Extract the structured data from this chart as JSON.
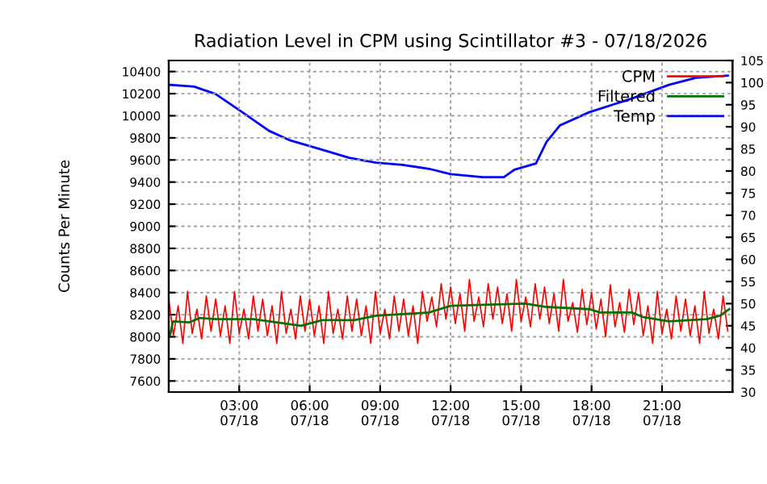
{
  "chart_data": {
    "type": "line",
    "title": "Radiation Level in CPM using Scintillator #3 - 07/18/2026",
    "ylabel": "Counts Per Minute",
    "xlim": [
      "2026-07-18T00:00",
      "2026-07-19T00:00"
    ],
    "xticks": [
      {
        "value": "2026-07-18T03:00",
        "label": "03:00\n07/18"
      },
      {
        "value": "2026-07-18T06:00",
        "label": "06:00\n07/18"
      },
      {
        "value": "2026-07-18T09:00",
        "label": "09:00\n07/18"
      },
      {
        "value": "2026-07-18T12:00",
        "label": "12:00\n07/18"
      },
      {
        "value": "2026-07-18T15:00",
        "label": "15:00\n07/18"
      },
      {
        "value": "2026-07-18T18:00",
        "label": "18:00\n07/18"
      },
      {
        "value": "2026-07-18T21:00",
        "label": "21:00\n07/18"
      }
    ],
    "ylim": [
      7500,
      10500
    ],
    "yticks": [
      7600,
      7800,
      8000,
      8200,
      8400,
      8600,
      8800,
      9000,
      9200,
      9400,
      9600,
      9800,
      10000,
      10200,
      10400
    ],
    "y2lim": [
      30,
      105
    ],
    "y2ticks": [
      30,
      35,
      40,
      45,
      50,
      55,
      60,
      65,
      70,
      75,
      80,
      85,
      90,
      95,
      100,
      105
    ],
    "grid": true,
    "legend": "top right",
    "line_style": "solid",
    "marker": "none",
    "series": [
      {
        "name": "CPM",
        "color": "#ff0000",
        "x": [
          "2026-07-18T00:00",
          "2026-07-18T00:12",
          "2026-07-18T00:24",
          "2026-07-18T00:36",
          "2026-07-18T00:48",
          "2026-07-18T01:00",
          "2026-07-18T01:12",
          "2026-07-18T01:24",
          "2026-07-18T01:36",
          "2026-07-18T01:48",
          "2026-07-18T02:00",
          "2026-07-18T02:12",
          "2026-07-18T02:24",
          "2026-07-18T02:36",
          "2026-07-18T02:48",
          "2026-07-18T03:00",
          "2026-07-18T03:12",
          "2026-07-18T03:24",
          "2026-07-18T03:36",
          "2026-07-18T03:48",
          "2026-07-18T04:00",
          "2026-07-18T04:12",
          "2026-07-18T04:24",
          "2026-07-18T04:36",
          "2026-07-18T04:48",
          "2026-07-18T05:00",
          "2026-07-18T05:12",
          "2026-07-18T05:24",
          "2026-07-18T05:36",
          "2026-07-18T05:48",
          "2026-07-18T06:00",
          "2026-07-18T06:12",
          "2026-07-18T06:24",
          "2026-07-18T06:36",
          "2026-07-18T06:48",
          "2026-07-18T07:00",
          "2026-07-18T07:12",
          "2026-07-18T07:24",
          "2026-07-18T07:36",
          "2026-07-18T07:48",
          "2026-07-18T08:00",
          "2026-07-18T08:12",
          "2026-07-18T08:24",
          "2026-07-18T08:36",
          "2026-07-18T08:48",
          "2026-07-18T09:00",
          "2026-07-18T09:12",
          "2026-07-18T09:24",
          "2026-07-18T09:36",
          "2026-07-18T09:48",
          "2026-07-18T10:00",
          "2026-07-18T10:12",
          "2026-07-18T10:24",
          "2026-07-18T10:36",
          "2026-07-18T10:48",
          "2026-07-18T11:00",
          "2026-07-18T11:12",
          "2026-07-18T11:24",
          "2026-07-18T11:36",
          "2026-07-18T11:48",
          "2026-07-18T12:00",
          "2026-07-18T12:12",
          "2026-07-18T12:24",
          "2026-07-18T12:36",
          "2026-07-18T12:48",
          "2026-07-18T13:00",
          "2026-07-18T13:12",
          "2026-07-18T13:24",
          "2026-07-18T13:36",
          "2026-07-18T13:48",
          "2026-07-18T14:00",
          "2026-07-18T14:12",
          "2026-07-18T14:24",
          "2026-07-18T14:36",
          "2026-07-18T14:48",
          "2026-07-18T15:00",
          "2026-07-18T15:12",
          "2026-07-18T15:24",
          "2026-07-18T15:36",
          "2026-07-18T15:48",
          "2026-07-18T16:00",
          "2026-07-18T16:12",
          "2026-07-18T16:24",
          "2026-07-18T16:36",
          "2026-07-18T16:48",
          "2026-07-18T17:00",
          "2026-07-18T17:12",
          "2026-07-18T17:24",
          "2026-07-18T17:36",
          "2026-07-18T17:48",
          "2026-07-18T18:00",
          "2026-07-18T18:12",
          "2026-07-18T18:24",
          "2026-07-18T18:36",
          "2026-07-18T18:48",
          "2026-07-18T19:00",
          "2026-07-18T19:12",
          "2026-07-18T19:24",
          "2026-07-18T19:36",
          "2026-07-18T19:48",
          "2026-07-18T20:00",
          "2026-07-18T20:12",
          "2026-07-18T20:24",
          "2026-07-18T20:36",
          "2026-07-18T20:48",
          "2026-07-18T21:00",
          "2026-07-18T21:12",
          "2026-07-18T21:24",
          "2026-07-18T21:36",
          "2026-07-18T21:48",
          "2026-07-18T22:00",
          "2026-07-18T22:12",
          "2026-07-18T22:24",
          "2026-07-18T22:36",
          "2026-07-18T22:48",
          "2026-07-18T23:00",
          "2026-07-18T23:12",
          "2026-07-18T23:24",
          "2026-07-18T23:36",
          "2026-07-18T23:48"
        ],
        "values": [
          8340,
          8010,
          8280,
          7940,
          8410,
          8030,
          8250,
          7980,
          8370,
          8050,
          8340,
          8010,
          8280,
          7940,
          8410,
          8030,
          8250,
          7980,
          8370,
          8050,
          8340,
          8010,
          8280,
          7940,
          8410,
          8030,
          8250,
          7980,
          8370,
          8050,
          8340,
          8010,
          8280,
          7940,
          8410,
          8030,
          8250,
          7980,
          8370,
          8050,
          8340,
          8010,
          8280,
          7940,
          8410,
          8030,
          8250,
          7980,
          8370,
          8050,
          8340,
          8010,
          8280,
          7940,
          8410,
          8140,
          8360,
          8090,
          8480,
          8160,
          8450,
          8120,
          8390,
          8050,
          8520,
          8140,
          8360,
          8090,
          8480,
          8160,
          8450,
          8120,
          8390,
          8050,
          8520,
          8140,
          8360,
          8090,
          8480,
          8160,
          8450,
          8120,
          8390,
          8050,
          8520,
          8140,
          8310,
          8040,
          8430,
          8110,
          8400,
          8070,
          8340,
          8000,
          8470,
          8090,
          8310,
          8040,
          8430,
          8110,
          8400,
          8010,
          8280,
          7940,
          8410,
          8030,
          8250,
          7980,
          8370,
          8050,
          8340,
          8010,
          8280,
          7940,
          8410,
          8030,
          8250,
          7980,
          8370,
          8050
        ]
      },
      {
        "name": "Filtered",
        "color": "#007000",
        "x": [
          "2026-07-18T00:03",
          "2026-07-18T00:11",
          "2026-07-18T00:52",
          "2026-07-18T01:19",
          "2026-07-18T02:00",
          "2026-07-18T03:36",
          "2026-07-18T04:58",
          "2026-07-18T05:38",
          "2026-07-18T06:32",
          "2026-07-18T07:54",
          "2026-07-18T08:49",
          "2026-07-18T11:05",
          "2026-07-18T12:00",
          "2026-07-18T13:22",
          "2026-07-18T15:11",
          "2026-07-18T16:05",
          "2026-07-18T17:54",
          "2026-07-18T18:22",
          "2026-07-18T19:43",
          "2026-07-18T20:10",
          "2026-07-18T21:18",
          "2026-07-18T22:54",
          "2026-07-18T23:28",
          "2026-07-18T23:52"
        ],
        "values": [
          8010,
          8140,
          8130,
          8170,
          8160,
          8160,
          8120,
          8100,
          8150,
          8150,
          8190,
          8220,
          8280,
          8290,
          8300,
          8270,
          8250,
          8220,
          8220,
          8180,
          8140,
          8160,
          8190,
          8250
        ]
      },
      {
        "name": "Temp",
        "color": "#0000ff",
        "axis": "y2",
        "x": [
          "2026-07-18T00:04",
          "2026-07-18T01:05",
          "2026-07-18T02:00",
          "2026-07-18T03:08",
          "2026-07-18T04:16",
          "2026-07-18T05:11",
          "2026-07-18T06:32",
          "2026-07-18T07:41",
          "2026-07-18T08:49",
          "2026-07-18T09:57",
          "2026-07-18T11:05",
          "2026-07-18T12:00",
          "2026-07-18T13:22",
          "2026-07-18T14:16",
          "2026-07-18T14:43",
          "2026-07-18T15:38",
          "2026-07-18T16:05",
          "2026-07-18T16:39",
          "2026-07-18T17:54",
          "2026-07-18T19:43",
          "2026-07-18T21:18",
          "2026-07-18T22:27",
          "2026-07-18T23:48"
        ],
        "values": [
          99.5,
          99.1,
          97.4,
          93.3,
          89.1,
          86.9,
          84.8,
          83.0,
          81.9,
          81.4,
          80.5,
          79.3,
          78.6,
          78.6,
          80.3,
          81.7,
          86.6,
          90.3,
          93.3,
          96.4,
          99.5,
          101.1,
          101.6
        ]
      }
    ]
  }
}
